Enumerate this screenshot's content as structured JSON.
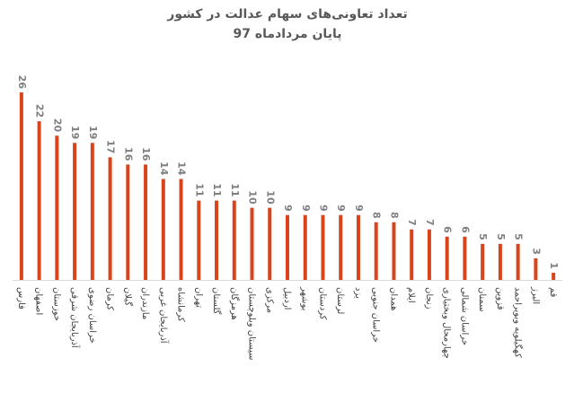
{
  "chart_data": {
    "type": "bar",
    "title": "تعداد تعاونی‌های سهام عدالت در کشور",
    "subtitle": "پایان مردادماه 97",
    "categories": [
      "فارس",
      "اصفهان",
      "خوزستان",
      "آذربایجان شرقی",
      "خراسان رضوی",
      "کرمان",
      "گیلان",
      "مازندران",
      "آذربایجان غربی",
      "کرمانشاه",
      "تهران",
      "گلستان",
      "هرمزگان",
      "سیستان وبلوچستان",
      "مرکزی",
      "اردبیل",
      "بوشهر",
      "کردستان",
      "لرستان",
      "یزد",
      "خراسان جنوبی",
      "همدان",
      "ایلام",
      "زنجان",
      "چهارمحال وبختیاری",
      "خراسان شمالی",
      "سمنان",
      "قزوین",
      "کهگیلویه وبویراحمد",
      "البرز",
      "قم"
    ],
    "values": [
      26,
      22,
      20,
      19,
      19,
      17,
      16,
      16,
      14,
      14,
      11,
      11,
      11,
      10,
      10,
      9,
      9,
      9,
      9,
      9,
      8,
      8,
      7,
      7,
      6,
      6,
      5,
      5,
      5,
      3,
      1
    ],
    "color": "#d9441c"
  }
}
